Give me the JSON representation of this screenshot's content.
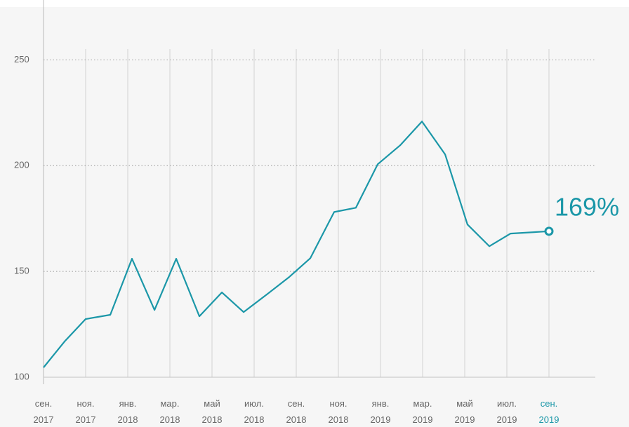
{
  "chart_data": {
    "type": "line",
    "xlim": [
      0,
      24
    ],
    "xticks": [
      {
        "value": 0,
        "label": "сен. 2017"
      },
      {
        "value": 2,
        "label": "ноя. 2017"
      },
      {
        "value": 4,
        "label": "янв. 2018"
      },
      {
        "value": 6,
        "label": "мар. 2018"
      },
      {
        "value": 8,
        "label": "май 2018"
      },
      {
        "value": 10,
        "label": "июл. 2018"
      },
      {
        "value": 12,
        "label": "сен. 2018"
      },
      {
        "value": 14,
        "label": "ноя. 2018"
      },
      {
        "value": 16,
        "label": "янв. 2019"
      },
      {
        "value": 18,
        "label": "мар. 2019"
      },
      {
        "value": 20,
        "label": "май 2019"
      },
      {
        "value": 22,
        "label": "июл. 2019"
      },
      {
        "value": 24,
        "label": "сен. 2019"
      }
    ],
    "ylim": [
      100,
      275
    ],
    "yticks": [
      100,
      150,
      200,
      250
    ],
    "grid": true,
    "series": [
      {
        "color": "#1b97a8",
        "x": [
          0,
          1,
          2,
          3.17,
          4.2,
          5.27,
          6.3,
          7.4,
          8.47,
          9.5,
          10.6,
          11.67,
          12.67,
          13.8,
          14.83,
          15.87,
          16.93,
          17.97,
          19.07,
          20.13,
          21.17,
          22.17,
          24
        ],
        "values": [
          104.6,
          116.9,
          127.5,
          129.5,
          156,
          131.8,
          156,
          128.8,
          140.1,
          130.8,
          139.1,
          147.4,
          156.3,
          178.1,
          180.1,
          200.7,
          209.6,
          220.9,
          205.3,
          172.2,
          161.9,
          167.9,
          169
        ],
        "value_labels": [
          null,
          null,
          null,
          null,
          null,
          null,
          null,
          null,
          null,
          null,
          null,
          null,
          null,
          null,
          null,
          null,
          null,
          null,
          null,
          null,
          null,
          null,
          "169%"
        ]
      }
    ]
  }
}
